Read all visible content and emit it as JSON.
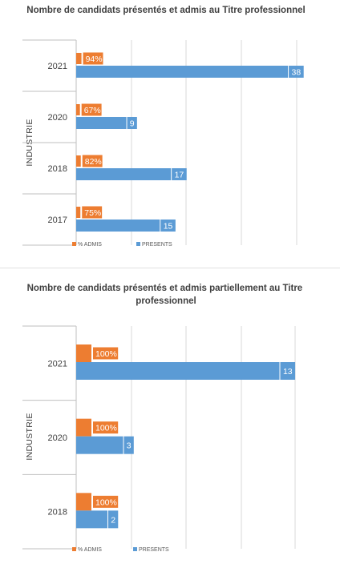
{
  "colors": {
    "admis": "#ED7D31",
    "presents": "#5B9BD5",
    "grid": "#D9D9D9"
  },
  "chart_data": [
    {
      "type": "bar",
      "orientation": "horizontal",
      "title": "Nombre de candidats présentés et admis au Titre professionnel",
      "ylabel": "INDUSTRIE",
      "categories": [
        "2021",
        "2020",
        "2018",
        "2017"
      ],
      "series": [
        {
          "name": "% ADMIS",
          "values": [
            94,
            67,
            82,
            75
          ],
          "labels": [
            "94%",
            "67%",
            "82%",
            "75%"
          ]
        },
        {
          "name": "PRESENTS",
          "values": [
            38,
            9,
            17,
            15
          ],
          "labels": [
            "38",
            "9",
            "17",
            "15"
          ]
        }
      ],
      "xlim": [
        0,
        40
      ],
      "grid": true,
      "legend": "bottom"
    },
    {
      "type": "bar",
      "orientation": "horizontal",
      "title": "Nombre de candidats présentés et admis partiellement au Titre professionnel",
      "ylabel": "INDUSTRIE",
      "categories": [
        "2021",
        "2020",
        "2018"
      ],
      "series": [
        {
          "name": "% ADMIS",
          "values": [
            100,
            100,
            100
          ],
          "labels": [
            "100%",
            "100%",
            "100%"
          ]
        },
        {
          "name": "PRESENTS",
          "values": [
            13,
            3,
            2
          ],
          "labels": [
            "13",
            "3",
            "2"
          ]
        }
      ],
      "xlim": [
        0,
        14
      ],
      "grid": true,
      "legend": "bottom"
    }
  ]
}
